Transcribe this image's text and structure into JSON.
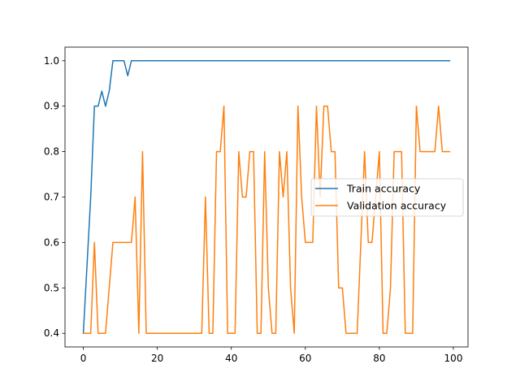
{
  "chart_data": {
    "type": "line",
    "title": "",
    "xlabel": "",
    "ylabel": "",
    "xlim": [
      -4.95,
      103.95
    ],
    "ylim": [
      0.37,
      1.03
    ],
    "xticks": [
      0,
      20,
      40,
      60,
      80,
      100
    ],
    "xtick_labels": [
      "0",
      "20",
      "40",
      "60",
      "80",
      "100"
    ],
    "yticks": [
      0.4,
      0.5,
      0.6,
      0.7,
      0.8,
      0.9,
      1.0
    ],
    "ytick_labels": [
      "0.4",
      "0.5",
      "0.6",
      "0.7",
      "0.8",
      "0.9",
      "1.0"
    ],
    "grid": false,
    "legend_position": "center-right",
    "x": [
      0,
      1,
      2,
      3,
      4,
      5,
      6,
      7,
      8,
      9,
      10,
      11,
      12,
      13,
      14,
      15,
      16,
      17,
      18,
      19,
      20,
      21,
      22,
      23,
      24,
      25,
      26,
      27,
      28,
      29,
      30,
      31,
      32,
      33,
      34,
      35,
      36,
      37,
      38,
      39,
      40,
      41,
      42,
      43,
      44,
      45,
      46,
      47,
      48,
      49,
      50,
      51,
      52,
      53,
      54,
      55,
      56,
      57,
      58,
      59,
      60,
      61,
      62,
      63,
      64,
      65,
      66,
      67,
      68,
      69,
      70,
      71,
      72,
      73,
      74,
      75,
      76,
      77,
      78,
      79,
      80,
      81,
      82,
      83,
      84,
      85,
      86,
      87,
      88,
      89,
      90,
      91,
      92,
      93,
      94,
      95,
      96,
      97,
      98,
      99
    ],
    "series": [
      {
        "name": "Train accuracy",
        "color": "#1f77b4",
        "values": [
          0.4,
          0.55,
          0.7,
          0.9,
          0.9,
          0.933,
          0.9,
          0.933,
          1.0,
          1.0,
          1.0,
          1.0,
          0.967,
          1.0,
          1.0,
          1.0,
          1.0,
          1.0,
          1.0,
          1.0,
          1.0,
          1.0,
          1.0,
          1.0,
          1.0,
          1.0,
          1.0,
          1.0,
          1.0,
          1.0,
          1.0,
          1.0,
          1.0,
          1.0,
          1.0,
          1.0,
          1.0,
          1.0,
          1.0,
          1.0,
          1.0,
          1.0,
          1.0,
          1.0,
          1.0,
          1.0,
          1.0,
          1.0,
          1.0,
          1.0,
          1.0,
          1.0,
          1.0,
          1.0,
          1.0,
          1.0,
          1.0,
          1.0,
          1.0,
          1.0,
          1.0,
          1.0,
          1.0,
          1.0,
          1.0,
          1.0,
          1.0,
          1.0,
          1.0,
          1.0,
          1.0,
          1.0,
          1.0,
          1.0,
          1.0,
          1.0,
          1.0,
          1.0,
          1.0,
          1.0,
          1.0,
          1.0,
          1.0,
          1.0,
          1.0,
          1.0,
          1.0,
          1.0,
          1.0,
          1.0,
          1.0,
          1.0,
          1.0,
          1.0,
          1.0,
          1.0,
          1.0,
          1.0,
          1.0,
          1.0
        ]
      },
      {
        "name": "Validation accuracy",
        "color": "#ff7f0e",
        "values": [
          0.4,
          0.4,
          0.4,
          0.6,
          0.4,
          0.4,
          0.4,
          0.5,
          0.6,
          0.6,
          0.6,
          0.6,
          0.6,
          0.6,
          0.7,
          0.4,
          0.8,
          0.4,
          0.4,
          0.4,
          0.4,
          0.4,
          0.4,
          0.4,
          0.4,
          0.4,
          0.4,
          0.4,
          0.4,
          0.4,
          0.4,
          0.4,
          0.4,
          0.7,
          0.4,
          0.4,
          0.8,
          0.8,
          0.9,
          0.4,
          0.4,
          0.4,
          0.8,
          0.7,
          0.7,
          0.8,
          0.8,
          0.4,
          0.4,
          0.8,
          0.5,
          0.4,
          0.4,
          0.8,
          0.7,
          0.8,
          0.5,
          0.4,
          0.9,
          0.7,
          0.6,
          0.6,
          0.6,
          0.9,
          0.7,
          0.9,
          0.9,
          0.8,
          0.8,
          0.5,
          0.5,
          0.4,
          0.4,
          0.4,
          0.4,
          0.6,
          0.8,
          0.6,
          0.6,
          0.7,
          0.8,
          0.4,
          0.4,
          0.5,
          0.8,
          0.8,
          0.8,
          0.4,
          0.4,
          0.4,
          0.9,
          0.8,
          0.8,
          0.8,
          0.8,
          0.8,
          0.9,
          0.8,
          0.8,
          0.8
        ]
      }
    ]
  }
}
